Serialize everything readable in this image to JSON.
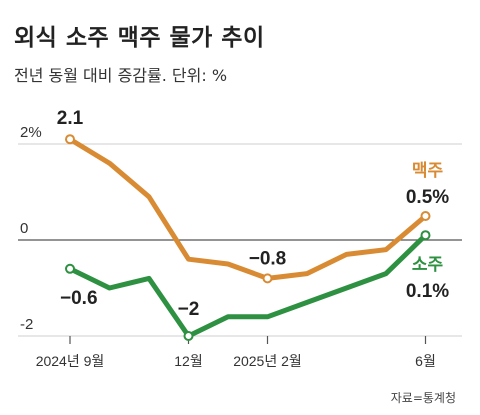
{
  "title": "외식 소주 맥주 물가 추이",
  "subtitle": "전년 동월 대비 증감률. 단위: %",
  "source": "자료=통계청",
  "chart_data": {
    "type": "line",
    "x": [
      "2024-09",
      "2024-10",
      "2024-11",
      "2024-12",
      "2025-01",
      "2025-02",
      "2025-03",
      "2025-04",
      "2025-05",
      "2025-06"
    ],
    "x_tick_labels": [
      {
        "index": 0,
        "label": "2024년 9월"
      },
      {
        "index": 3,
        "label": "12월"
      },
      {
        "index": 5,
        "label": "2025년 2월"
      },
      {
        "index": 9,
        "label": "6월"
      }
    ],
    "y_tick_labels": [
      {
        "value": 2,
        "label": "2%"
      },
      {
        "value": 0,
        "label": "0"
      },
      {
        "value": -2,
        "label": "-2"
      }
    ],
    "ylim": [
      -2,
      2
    ],
    "series": [
      {
        "name": "맥주",
        "color": "#d98b33",
        "values": [
          2.1,
          1.6,
          0.9,
          -0.4,
          -0.5,
          -0.8,
          -0.7,
          -0.3,
          -0.2,
          0.5
        ],
        "end_label": "0.5%"
      },
      {
        "name": "소주",
        "color": "#2e9142",
        "values": [
          -0.6,
          -1.0,
          -0.8,
          -2.0,
          -1.6,
          -1.6,
          -1.3,
          -1.0,
          -0.7,
          0.1
        ],
        "end_label": "0.1%"
      }
    ],
    "annotations": [
      {
        "series": 0,
        "index": 0,
        "text": "2.1"
      },
      {
        "series": 0,
        "index": 5,
        "text": "−0.8"
      },
      {
        "series": 1,
        "index": 0,
        "text": "−0.6"
      },
      {
        "series": 1,
        "index": 3,
        "text": "−2"
      }
    ],
    "grid": true
  }
}
